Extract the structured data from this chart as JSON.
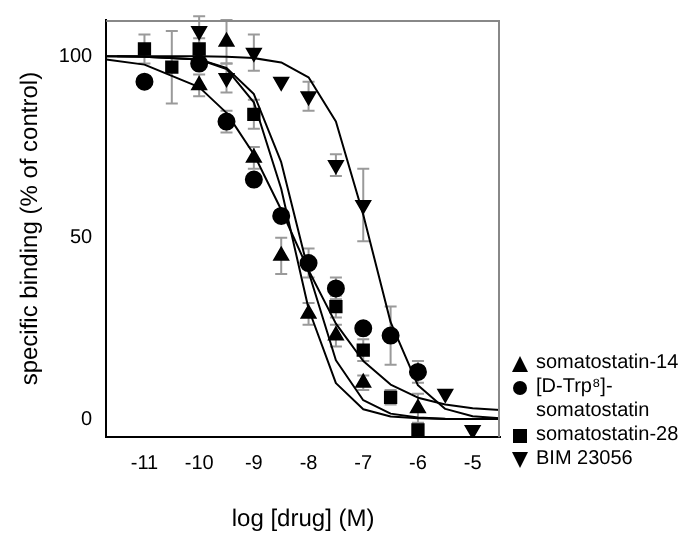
{
  "chart_data": {
    "type": "scatter",
    "xlabel": "log [drug] (M)",
    "ylabel": "specific binding (% of control)",
    "xlim": [
      -11.7,
      -4.5
    ],
    "xticks": [
      -11,
      -10,
      -9,
      -8,
      -7,
      -6,
      -5
    ],
    "ylim": [
      -5,
      110
    ],
    "yticks": [
      0,
      50,
      100
    ],
    "grid": false,
    "legend": "bottom right",
    "series": [
      {
        "name": "somatostatin-14",
        "marker": "triangle",
        "color": "#000000",
        "x": [
          -10,
          -9.5,
          -9,
          -8.5,
          -8,
          -7.5,
          -7,
          -6
        ],
        "values": [
          92,
          104,
          72,
          45,
          29,
          23,
          10,
          3
        ],
        "errors": [
          3,
          6,
          3,
          5,
          3,
          3,
          2,
          4
        ]
      },
      {
        "name": "[D-Trp⁸]-somatostatin",
        "marker": "circle",
        "color": "#000000",
        "x": [
          -11,
          -10,
          -9.5,
          -9,
          -8.5,
          -8,
          -7.5,
          -7,
          -6.5,
          -6
        ],
        "values": [
          93,
          98,
          82,
          66,
          56,
          43,
          36,
          25,
          23,
          13
        ],
        "errors": [
          null,
          null,
          3,
          null,
          null,
          4,
          3,
          null,
          8,
          3
        ]
      },
      {
        "name": "somatostatin-28",
        "marker": "square",
        "color": "#000000",
        "x": [
          -11,
          -10.5,
          -10,
          -9.5,
          -9,
          -8,
          -7.5,
          -7,
          -6.5,
          -6
        ],
        "values": [
          102,
          97,
          102,
          null,
          84,
          null,
          31,
          19,
          6,
          -3
        ],
        "errors": [
          4,
          10,
          3,
          null,
          4,
          null,
          3,
          3,
          2,
          null
        ]
      },
      {
        "name": "BIM 23056",
        "marker": "triangle-down",
        "color": "#000000",
        "x": [
          -10,
          -9.5,
          -9,
          -8.5,
          -8,
          -7.5,
          -7,
          -6.5,
          -5.5,
          -5
        ],
        "values": [
          107,
          94,
          101,
          93,
          89,
          70,
          59,
          null,
          7,
          -3
        ],
        "errors": [
          4,
          4,
          5,
          null,
          4,
          3,
          10,
          null,
          null,
          null
        ]
      },
      {
        "type": "line",
        "marker": "none",
        "color": "#000000",
        "x": [
          -11.7,
          -11,
          -10,
          -9.5,
          -9,
          -8.5,
          -8,
          -7.5,
          -7,
          -6.5,
          -6,
          -5.5,
          -5
        ],
        "values": [
          100,
          99.9,
          99.1,
          96.5,
          87.3,
          63.5,
          30.4,
          9.9,
          2.7,
          0.7,
          0.2,
          0,
          0
        ]
      },
      {
        "type": "line",
        "marker": "none",
        "color": "#000000",
        "x": [
          -11.5,
          -11,
          -10,
          -9.5,
          -9,
          -8.5,
          -8,
          -7.5,
          -7,
          -6.5,
          -6,
          -5.5,
          -5,
          -4.5
        ],
        "values": [
          100,
          99.9,
          99.1,
          96.8,
          89.6,
          70.8,
          40.6,
          16.2,
          5.2,
          1.5,
          0.4,
          0.1,
          0,
          0
        ]
      },
      {
        "type": "line",
        "marker": "none",
        "color": "#000000",
        "x": [
          -11.7,
          -11,
          -10,
          -9.5,
          -9,
          -8.5,
          -8,
          -7.5,
          -7,
          -6.5,
          -6,
          -5.5,
          -5,
          -4.5
        ],
        "values": [
          99.1,
          97.7,
          91.5,
          84.4,
          73,
          57.7,
          41,
          26.3,
          16,
          9.5,
          5.9,
          4,
          3,
          2.5
        ]
      },
      {
        "type": "line",
        "marker": "none",
        "color": "#000000",
        "x": [
          -11.7,
          -11,
          -10,
          -9.5,
          -9,
          -8.5,
          -8,
          -7.5,
          -7,
          -6.5,
          -6,
          -5.5,
          -5,
          -4.5
        ],
        "values": [
          100,
          100,
          100,
          99.9,
          99.5,
          98.3,
          94.2,
          82,
          56.3,
          26.7,
          9.3,
          2.8,
          0.8,
          0.2
        ]
      }
    ]
  }
}
